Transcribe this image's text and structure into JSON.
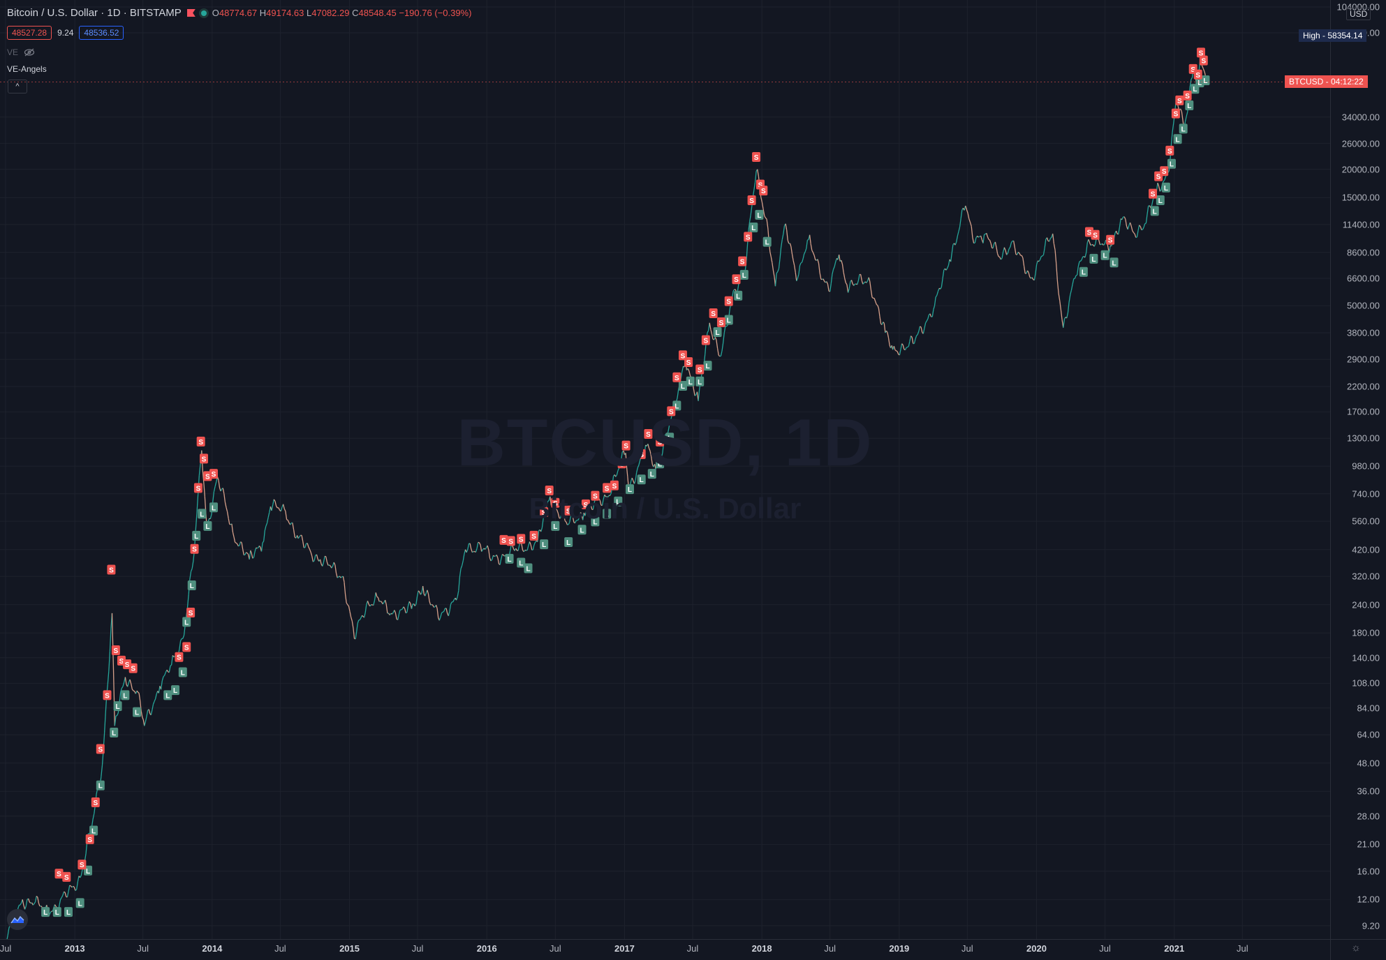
{
  "header": {
    "symbol": "Bitcoin / U.S. Dollar · 1D · BITSTAMP",
    "open_label": "O",
    "open": "48774.67",
    "high_label": "H",
    "high": "49174.63",
    "low_label": "L",
    "low": "47082.29",
    "close_label": "C",
    "close": "48548.45",
    "change": "−190.76 (−0.39%)",
    "bid": "48527.28",
    "spread": "9.24",
    "ask": "48536.52",
    "indicator_short": "VE",
    "indicator_name": "VE-Angels",
    "collapse_glyph": "^"
  },
  "watermark": {
    "symbol": "BTCUSD, 1D",
    "name": "Bitcoin / U.S. Dollar"
  },
  "price_scale": {
    "currency": "USD",
    "ticks": [
      "104000.00",
      "80000.00",
      "34000.00",
      "26000.00",
      "20000.00",
      "15000.00",
      "11400.00",
      "8600.00",
      "6600.00",
      "5000.00",
      "3800.00",
      "2900.00",
      "2200.00",
      "1700.00",
      "1300.00",
      "980.00",
      "740.00",
      "560.00",
      "420.00",
      "320.00",
      "240.00",
      "180.00",
      "140.00",
      "108.00",
      "84.00",
      "64.00",
      "48.00",
      "36.00",
      "28.00",
      "21.00",
      "16.00",
      "12.00",
      "9.20"
    ],
    "high_label": "High",
    "high_value": "58354.14",
    "last_symbol": "BTCUSD",
    "countdown": "04:12:22"
  },
  "time_scale": {
    "ticks": [
      {
        "label": "Jul",
        "date": "2012-07-01",
        "bold": false
      },
      {
        "label": "2013",
        "date": "2013-01-01",
        "bold": true
      },
      {
        "label": "Jul",
        "date": "2013-07-01",
        "bold": false
      },
      {
        "label": "2014",
        "date": "2014-01-01",
        "bold": true
      },
      {
        "label": "Jul",
        "date": "2014-07-01",
        "bold": false
      },
      {
        "label": "2015",
        "date": "2015-01-01",
        "bold": true
      },
      {
        "label": "Jul",
        "date": "2015-07-01",
        "bold": false
      },
      {
        "label": "2016",
        "date": "2016-01-01",
        "bold": true
      },
      {
        "label": "Jul",
        "date": "2016-07-01",
        "bold": false
      },
      {
        "label": "2017",
        "date": "2017-01-01",
        "bold": true
      },
      {
        "label": "Jul",
        "date": "2017-07-01",
        "bold": false
      },
      {
        "label": "2018",
        "date": "2018-01-01",
        "bold": true
      },
      {
        "label": "Jul",
        "date": "2018-07-01",
        "bold": false
      },
      {
        "label": "2019",
        "date": "2019-01-01",
        "bold": true
      },
      {
        "label": "Jul",
        "date": "2019-07-01",
        "bold": false
      },
      {
        "label": "2020",
        "date": "2020-01-01",
        "bold": true
      },
      {
        "label": "Jul",
        "date": "2020-07-01",
        "bold": false
      },
      {
        "label": "2021",
        "date": "2021-01-01",
        "bold": true
      },
      {
        "label": "Jul",
        "date": "2021-07-01",
        "bold": false
      }
    ]
  },
  "colors": {
    "background": "#131722",
    "grid": "#1e222d",
    "up": "#26a69a",
    "down": "#ef5350",
    "price_line": "#d6a08a",
    "short_signal": "#ef5350",
    "long_signal": "#4f8f7f",
    "high_tag": "#1e2b4d",
    "last_tag": "#ef5350"
  },
  "chart_data": {
    "type": "line",
    "title": "Bitcoin / U.S. Dollar · 1D · BITSTAMP",
    "y_scale": "log",
    "ylim": [
      8.5,
      104000
    ],
    "xlim": [
      "2012-07-01",
      "2021-08-01"
    ],
    "series": [
      {
        "name": "BTCUSD",
        "points": [
          [
            "2012-07-01",
            8.0
          ],
          [
            "2012-08-15",
            12.0
          ],
          [
            "2012-09-15",
            11.5
          ],
          [
            "2012-10-15",
            11.0
          ],
          [
            "2012-11-15",
            11.0
          ],
          [
            "2012-12-15",
            13.0
          ],
          [
            "2013-01-15",
            15.0
          ],
          [
            "2013-02-15",
            25.0
          ],
          [
            "2013-03-15",
            47.0
          ],
          [
            "2013-04-10",
            220.0
          ],
          [
            "2013-04-17",
            70.0
          ],
          [
            "2013-05-15",
            115.0
          ],
          [
            "2013-06-15",
            100.0
          ],
          [
            "2013-07-05",
            70.0
          ],
          [
            "2013-08-15",
            105.0
          ],
          [
            "2013-09-15",
            130.0
          ],
          [
            "2013-10-15",
            170.0
          ],
          [
            "2013-11-15",
            420.0
          ],
          [
            "2013-12-04",
            1150.0
          ],
          [
            "2013-12-18",
            520.0
          ],
          [
            "2014-01-15",
            880.0
          ],
          [
            "2014-02-25",
            500.0
          ],
          [
            "2014-04-10",
            380.0
          ],
          [
            "2014-05-15",
            450.0
          ],
          [
            "2014-06-05",
            650.0
          ],
          [
            "2014-07-15",
            620.0
          ],
          [
            "2014-08-18",
            470.0
          ],
          [
            "2014-09-20",
            410.0
          ],
          [
            "2014-10-15",
            380.0
          ],
          [
            "2014-12-15",
            320.0
          ],
          [
            "2015-01-14",
            170.0
          ],
          [
            "2015-02-15",
            240.0
          ],
          [
            "2015-03-15",
            260.0
          ],
          [
            "2015-04-15",
            220.0
          ],
          [
            "2015-06-15",
            230.0
          ],
          [
            "2015-07-15",
            290.0
          ],
          [
            "2015-08-25",
            210.0
          ],
          [
            "2015-10-15",
            260.0
          ],
          [
            "2015-11-05",
            420.0
          ],
          [
            "2015-12-15",
            440.0
          ],
          [
            "2016-01-15",
            380.0
          ],
          [
            "2016-03-15",
            415.0
          ],
          [
            "2016-05-15",
            455.0
          ],
          [
            "2016-06-17",
            720.0
          ],
          [
            "2016-08-02",
            540.0
          ],
          [
            "2016-09-15",
            610.0
          ],
          [
            "2016-11-15",
            720.0
          ],
          [
            "2017-01-04",
            1120.0
          ],
          [
            "2017-01-12",
            780.0
          ],
          [
            "2017-03-01",
            1200.0
          ],
          [
            "2017-03-25",
            950.0
          ],
          [
            "2017-05-15",
            1800.0
          ],
          [
            "2017-06-12",
            2900.0
          ],
          [
            "2017-07-16",
            1900.0
          ],
          [
            "2017-08-15",
            4200.0
          ],
          [
            "2017-09-14",
            3000.0
          ],
          [
            "2017-10-20",
            5900.0
          ],
          [
            "2017-11-15",
            7000.0
          ],
          [
            "2017-12-17",
            19600.0
          ],
          [
            "2018-01-17",
            11000.0
          ],
          [
            "2018-02-06",
            6100.0
          ],
          [
            "2018-03-05",
            11500.0
          ],
          [
            "2018-04-06",
            6600.0
          ],
          [
            "2018-05-05",
            9800.0
          ],
          [
            "2018-06-28",
            5800.0
          ],
          [
            "2018-07-25",
            8400.0
          ],
          [
            "2018-08-15",
            6200.0
          ],
          [
            "2018-10-15",
            6400.0
          ],
          [
            "2018-11-25",
            3800.0
          ],
          [
            "2018-12-15",
            3200.0
          ],
          [
            "2019-02-07",
            3400.0
          ],
          [
            "2019-04-05",
            5000.0
          ],
          [
            "2019-05-15",
            8000.0
          ],
          [
            "2019-06-26",
            13800.0
          ],
          [
            "2019-07-15",
            10000.0
          ],
          [
            "2019-08-15",
            10300.0
          ],
          [
            "2019-09-25",
            8200.0
          ],
          [
            "2019-10-26",
            9500.0
          ],
          [
            "2019-12-17",
            6600.0
          ],
          [
            "2020-02-13",
            10400.0
          ],
          [
            "2020-03-12",
            4000.0
          ],
          [
            "2020-04-15",
            6800.0
          ],
          [
            "2020-05-15",
            9500.0
          ],
          [
            "2020-07-15",
            9200.0
          ],
          [
            "2020-08-15",
            12000.0
          ],
          [
            "2020-09-15",
            10500.0
          ],
          [
            "2020-10-15",
            11500.0
          ],
          [
            "2020-11-15",
            16000.0
          ],
          [
            "2020-12-15",
            19300.0
          ],
          [
            "2021-01-08",
            41000.0
          ],
          [
            "2021-01-27",
            30000.0
          ],
          [
            "2021-02-21",
            57000.0
          ],
          [
            "2021-03-05",
            47000.0
          ],
          [
            "2021-03-13",
            61000.0
          ],
          [
            "2021-03-22",
            54000.0
          ],
          [
            "2021-03-26",
            48548.45
          ]
        ]
      }
    ],
    "signals": {
      "short_label": "S",
      "long_label": "L",
      "shorts": [
        [
          "2012-11-20",
          15.5
        ],
        [
          "2012-12-10",
          15.0
        ],
        [
          "2013-01-20",
          17.0
        ],
        [
          "2013-02-10",
          22.0
        ],
        [
          "2013-02-25",
          32.0
        ],
        [
          "2013-03-10",
          55.0
        ],
        [
          "2013-03-28",
          95.0
        ],
        [
          "2013-04-08",
          340.0
        ],
        [
          "2013-04-20",
          150.0
        ],
        [
          "2013-05-05",
          135.0
        ],
        [
          "2013-05-20",
          130.0
        ],
        [
          "2013-06-05",
          125.0
        ],
        [
          "2013-10-05",
          140.0
        ],
        [
          "2013-10-25",
          155.0
        ],
        [
          "2013-11-05",
          220.0
        ],
        [
          "2013-11-15",
          420.0
        ],
        [
          "2013-11-25",
          780.0
        ],
        [
          "2013-12-02",
          1250.0
        ],
        [
          "2013-12-10",
          1050.0
        ],
        [
          "2013-12-20",
          880.0
        ],
        [
          "2014-01-05",
          900.0
        ],
        [
          "2016-02-15",
          460.0
        ],
        [
          "2016-03-05",
          455.0
        ],
        [
          "2016-04-01",
          465.0
        ],
        [
          "2016-05-05",
          480.0
        ],
        [
          "2016-06-01",
          610.0
        ],
        [
          "2016-06-15",
          760.0
        ],
        [
          "2016-07-01",
          670.0
        ],
        [
          "2016-08-05",
          620.0
        ],
        [
          "2016-09-20",
          660.0
        ],
        [
          "2016-10-15",
          720.0
        ],
        [
          "2016-11-15",
          780.0
        ],
        [
          "2016-12-05",
          800.0
        ],
        [
          "2016-12-25",
          1000.0
        ],
        [
          "2017-01-05",
          1200.0
        ],
        [
          "2017-02-15",
          1100.0
        ],
        [
          "2017-03-05",
          1350.0
        ],
        [
          "2017-04-05",
          1250.0
        ],
        [
          "2017-05-05",
          1700.0
        ],
        [
          "2017-05-20",
          2400.0
        ],
        [
          "2017-06-05",
          3000.0
        ],
        [
          "2017-06-20",
          2800.0
        ],
        [
          "2017-07-20",
          2600.0
        ],
        [
          "2017-08-05",
          3500.0
        ],
        [
          "2017-08-25",
          4600.0
        ],
        [
          "2017-09-15",
          4200.0
        ],
        [
          "2017-10-05",
          5200.0
        ],
        [
          "2017-10-25",
          6500.0
        ],
        [
          "2017-11-10",
          7800.0
        ],
        [
          "2017-11-25",
          10000.0
        ],
        [
          "2017-12-05",
          14500.0
        ],
        [
          "2017-12-17",
          22500.0
        ],
        [
          "2017-12-28",
          17000.0
        ],
        [
          "2018-01-05",
          16000.0
        ],
        [
          "2020-05-20",
          10500.0
        ],
        [
          "2020-06-05",
          10200.0
        ],
        [
          "2020-07-15",
          9700.0
        ],
        [
          "2020-11-05",
          15500.0
        ],
        [
          "2020-11-20",
          18500.0
        ],
        [
          "2020-12-05",
          19500.0
        ],
        [
          "2020-12-20",
          24000.0
        ],
        [
          "2021-01-05",
          35000.0
        ],
        [
          "2021-01-15",
          40000.0
        ],
        [
          "2021-02-05",
          42000.0
        ],
        [
          "2021-02-20",
          55000.0
        ],
        [
          "2021-03-05",
          52000.0
        ],
        [
          "2021-03-13",
          65000.0
        ],
        [
          "2021-03-20",
          60000.0
        ]
      ],
      "longs": [
        [
          "2012-10-15",
          10.5
        ],
        [
          "2012-11-15",
          10.5
        ],
        [
          "2012-12-15",
          10.5
        ],
        [
          "2013-01-15",
          11.5
        ],
        [
          "2013-02-05",
          16.0
        ],
        [
          "2013-02-20",
          24.0
        ],
        [
          "2013-03-10",
          38.0
        ],
        [
          "2013-04-15",
          65.0
        ],
        [
          "2013-04-25",
          85.0
        ],
        [
          "2013-05-15",
          95.0
        ],
        [
          "2013-06-15",
          80.0
        ],
        [
          "2013-09-05",
          95.0
        ],
        [
          "2013-09-25",
          100.0
        ],
        [
          "2013-10-15",
          120.0
        ],
        [
          "2013-10-25",
          200.0
        ],
        [
          "2013-11-08",
          290.0
        ],
        [
          "2013-11-20",
          480.0
        ],
        [
          "2013-12-05",
          600.0
        ],
        [
          "2013-12-20",
          530.0
        ],
        [
          "2014-01-05",
          640.0
        ],
        [
          "2016-03-01",
          380.0
        ],
        [
          "2016-04-01",
          365.0
        ],
        [
          "2016-04-20",
          345.0
        ],
        [
          "2016-06-01",
          440.0
        ],
        [
          "2016-07-01",
          530.0
        ],
        [
          "2016-08-05",
          450.0
        ],
        [
          "2016-09-10",
          510.0
        ],
        [
          "2016-10-15",
          555.0
        ],
        [
          "2016-11-15",
          600.0
        ],
        [
          "2016-12-15",
          680.0
        ],
        [
          "2017-01-15",
          770.0
        ],
        [
          "2017-02-15",
          850.0
        ],
        [
          "2017-03-15",
          900.0
        ],
        [
          "2017-04-05",
          1000.0
        ],
        [
          "2017-05-01",
          1300.0
        ],
        [
          "2017-05-20",
          1800.0
        ],
        [
          "2017-06-05",
          2200.0
        ],
        [
          "2017-06-25",
          2300.0
        ],
        [
          "2017-07-20",
          2300.0
        ],
        [
          "2017-08-10",
          2700.0
        ],
        [
          "2017-09-05",
          3800.0
        ],
        [
          "2017-10-05",
          4300.0
        ],
        [
          "2017-10-30",
          5500.0
        ],
        [
          "2017-11-15",
          6800.0
        ],
        [
          "2017-12-10",
          11000.0
        ],
        [
          "2017-12-25",
          12500.0
        ],
        [
          "2018-01-15",
          9500.0
        ],
        [
          "2020-05-05",
          7000.0
        ],
        [
          "2020-06-01",
          8000.0
        ],
        [
          "2020-07-01",
          8300.0
        ],
        [
          "2020-07-25",
          7700.0
        ],
        [
          "2020-11-10",
          13000.0
        ],
        [
          "2020-11-25",
          14500.0
        ],
        [
          "2020-12-10",
          16500.0
        ],
        [
          "2020-12-25",
          21000.0
        ],
        [
          "2021-01-10",
          27000.0
        ],
        [
          "2021-01-25",
          30000.0
        ],
        [
          "2021-02-10",
          38000.0
        ],
        [
          "2021-02-25",
          45000.0
        ],
        [
          "2021-03-10",
          48000.0
        ],
        [
          "2021-03-25",
          49000.0
        ]
      ]
    }
  }
}
